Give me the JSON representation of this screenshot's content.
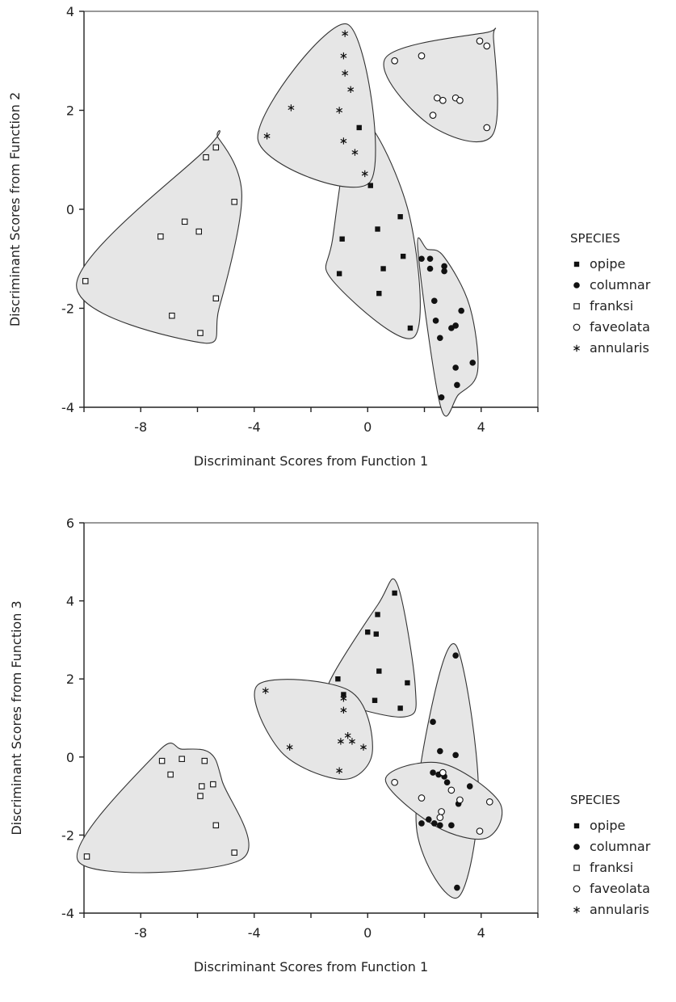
{
  "chart_data": [
    {
      "type": "scatter",
      "title": "",
      "xlabel": "Discriminant Scores from Function 1",
      "ylabel": "Discriminant Scores from Function 2",
      "xlim": [
        -10,
        6
      ],
      "ylim": [
        -4,
        4
      ],
      "x_ticks": [
        "-8",
        "-4",
        "0",
        "4"
      ],
      "x_tick_values": [
        -8,
        -4,
        0,
        4
      ],
      "y_ticks": [
        "-4",
        "-2",
        "0",
        "2",
        "4"
      ],
      "y_tick_values": [
        -4,
        -2,
        0,
        2,
        4
      ],
      "grid": false,
      "legend": {
        "title": "SPECIES",
        "placement": "right",
        "entries": [
          {
            "label": "opipe",
            "marker": "filled-square"
          },
          {
            "label": "columnar",
            "marker": "filled-circle"
          },
          {
            "label": "franksi",
            "marker": "open-square"
          },
          {
            "label": "faveolata",
            "marker": "open-circle"
          },
          {
            "label": "annularis",
            "marker": "asterisk"
          }
        ]
      },
      "series": [
        {
          "name": "opipe",
          "marker": "filled-square",
          "points": [
            [
              -0.3,
              1.65
            ],
            [
              0.1,
              0.48
            ],
            [
              -1.0,
              -1.3
            ],
            [
              -0.9,
              -0.6
            ],
            [
              0.35,
              -0.4
            ],
            [
              1.15,
              -0.15
            ],
            [
              0.55,
              -1.2
            ],
            [
              0.4,
              -1.7
            ],
            [
              1.25,
              -0.95
            ],
            [
              1.5,
              -2.4
            ]
          ]
        },
        {
          "name": "columnar",
          "marker": "filled-circle",
          "points": [
            [
              1.9,
              -1.0
            ],
            [
              2.2,
              -1.0
            ],
            [
              2.2,
              -1.2
            ],
            [
              2.7,
              -1.15
            ],
            [
              2.7,
              -1.25
            ],
            [
              2.35,
              -1.85
            ],
            [
              2.4,
              -2.25
            ],
            [
              3.3,
              -2.05
            ],
            [
              2.55,
              -2.6
            ],
            [
              3.1,
              -2.35
            ],
            [
              2.95,
              -2.4
            ],
            [
              3.7,
              -3.1
            ],
            [
              3.15,
              -3.55
            ],
            [
              3.1,
              -3.2
            ],
            [
              2.6,
              -3.8
            ]
          ]
        },
        {
          "name": "franksi",
          "marker": "open-square",
          "points": [
            [
              -5.35,
              1.25
            ],
            [
              -5.7,
              1.05
            ],
            [
              -4.7,
              0.15
            ],
            [
              -6.45,
              -0.25
            ],
            [
              -5.95,
              -0.45
            ],
            [
              -7.3,
              -0.55
            ],
            [
              -9.95,
              -1.45
            ],
            [
              -5.35,
              -1.8
            ],
            [
              -6.9,
              -2.15
            ],
            [
              -5.9,
              -2.5
            ]
          ]
        },
        {
          "name": "faveolata",
          "marker": "open-circle",
          "points": [
            [
              0.95,
              3.0
            ],
            [
              1.9,
              3.1
            ],
            [
              3.95,
              3.4
            ],
            [
              4.2,
              3.3
            ],
            [
              2.45,
              2.25
            ],
            [
              2.65,
              2.2
            ],
            [
              3.1,
              2.25
            ],
            [
              3.25,
              2.2
            ],
            [
              2.3,
              1.9
            ],
            [
              4.2,
              1.65
            ]
          ]
        },
        {
          "name": "annularis",
          "marker": "asterisk",
          "points": [
            [
              -0.8,
              3.55
            ],
            [
              -0.85,
              3.1
            ],
            [
              -0.8,
              2.75
            ],
            [
              -0.6,
              2.42
            ],
            [
              -2.7,
              2.05
            ],
            [
              -1.0,
              2.0
            ],
            [
              -3.55,
              1.48
            ],
            [
              -0.85,
              1.38
            ],
            [
              -0.45,
              1.15
            ],
            [
              -0.1,
              0.72
            ]
          ]
        }
      ]
    },
    {
      "type": "scatter",
      "title": "",
      "xlabel": "Discriminant Scores from Function 1",
      "ylabel": "Discriminant Scores from Function 3",
      "xlim": [
        -10,
        6
      ],
      "ylim": [
        -4,
        6
      ],
      "x_ticks": [
        "-8",
        "-4",
        "0",
        "4"
      ],
      "x_tick_values": [
        -8,
        -4,
        0,
        4
      ],
      "y_ticks": [
        "-4",
        "-2",
        "0",
        "2",
        "4",
        "6"
      ],
      "y_tick_values": [
        -4,
        -2,
        0,
        2,
        4,
        6
      ],
      "grid": false,
      "legend": {
        "title": "SPECIES",
        "placement": "right",
        "entries": [
          {
            "label": "opipe",
            "marker": "filled-square"
          },
          {
            "label": "columnar",
            "marker": "filled-circle"
          },
          {
            "label": "franksi",
            "marker": "open-square"
          },
          {
            "label": "faveolata",
            "marker": "open-circle"
          },
          {
            "label": "annularis",
            "marker": "asterisk"
          }
        ]
      },
      "series": [
        {
          "name": "opipe",
          "marker": "filled-square",
          "points": [
            [
              0.95,
              4.2
            ],
            [
              0.35,
              3.65
            ],
            [
              0.0,
              3.2
            ],
            [
              0.3,
              3.15
            ],
            [
              0.4,
              2.2
            ],
            [
              1.4,
              1.9
            ],
            [
              -1.05,
              2.0
            ],
            [
              -0.85,
              1.6
            ],
            [
              0.25,
              1.45
            ],
            [
              1.15,
              1.25
            ]
          ]
        },
        {
          "name": "columnar",
          "marker": "filled-circle",
          "points": [
            [
              3.1,
              2.6
            ],
            [
              2.3,
              0.9
            ],
            [
              2.55,
              0.15
            ],
            [
              3.1,
              0.05
            ],
            [
              2.3,
              -0.4
            ],
            [
              2.5,
              -0.45
            ],
            [
              2.7,
              -0.5
            ],
            [
              2.8,
              -0.65
            ],
            [
              3.6,
              -0.75
            ],
            [
              2.15,
              -1.6
            ],
            [
              2.35,
              -1.7
            ],
            [
              1.9,
              -1.7
            ],
            [
              2.55,
              -1.75
            ],
            [
              2.95,
              -1.75
            ],
            [
              3.2,
              -1.2
            ],
            [
              3.15,
              -3.35
            ]
          ]
        },
        {
          "name": "franksi",
          "marker": "open-square",
          "points": [
            [
              -7.25,
              -0.1
            ],
            [
              -6.55,
              -0.05
            ],
            [
              -5.75,
              -0.1
            ],
            [
              -6.95,
              -0.45
            ],
            [
              -5.85,
              -0.75
            ],
            [
              -5.45,
              -0.7
            ],
            [
              -5.9,
              -1.0
            ],
            [
              -5.35,
              -1.75
            ],
            [
              -4.7,
              -2.45
            ],
            [
              -9.9,
              -2.55
            ]
          ]
        },
        {
          "name": "faveolata",
          "marker": "open-circle",
          "points": [
            [
              0.95,
              -0.65
            ],
            [
              2.65,
              -0.4
            ],
            [
              2.95,
              -0.85
            ],
            [
              1.9,
              -1.05
            ],
            [
              3.25,
              -1.1
            ],
            [
              4.3,
              -1.15
            ],
            [
              2.6,
              -1.4
            ],
            [
              2.55,
              -1.55
            ],
            [
              3.95,
              -1.9
            ]
          ]
        },
        {
          "name": "annularis",
          "marker": "asterisk",
          "points": [
            [
              -3.6,
              1.7
            ],
            [
              -0.85,
              1.5
            ],
            [
              -0.85,
              1.2
            ],
            [
              -0.7,
              0.55
            ],
            [
              -0.95,
              0.4
            ],
            [
              -0.55,
              0.4
            ],
            [
              -0.15,
              0.25
            ],
            [
              -2.75,
              0.25
            ],
            [
              -1.0,
              -0.35
            ]
          ]
        }
      ]
    }
  ]
}
